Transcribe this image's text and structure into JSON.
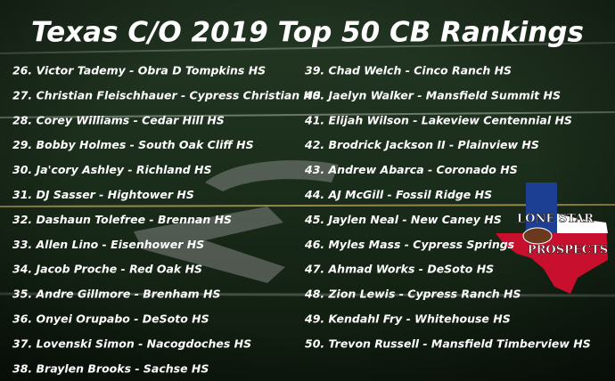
{
  "header": {
    "title": "Texas C/O 2019 Top 50 CB Rankings"
  },
  "rankings": {
    "left": [
      "26. Victor Tademy - Obra D Tompkins HS",
      "27. Christian Fleischhauer - Cypress Christian HS",
      "28. Corey Williams - Cedar Hill HS",
      "29. Bobby Holmes - South Oak Cliff HS",
      "30. Ja'cory Ashley - Richland HS",
      "31. DJ Sasser - Hightower HS",
      "32. Dashaun Tolefree - Brennan HS",
      "33. Allen Lino - Eisenhower HS",
      "34. Jacob Proche - Red Oak HS",
      "35. Andre Gillmore - Brenham HS",
      "36. Onyei Orupabo - DeSoto HS",
      "37. Lovenski Simon - Nacogdoches HS",
      "38. Braylen Brooks - Sachse HS"
    ],
    "right": [
      "39. Chad Welch - Cinco Ranch HS",
      "40. Jaelyn Walker - Mansfield Summit HS",
      "41. Elijah Wilson - Lakeview Centennial HS",
      "42. Brodrick Jackson II - Plainview HS",
      "43. Andrew Abarca - Coronado HS",
      "44. AJ McGill - Fossil Ridge HS",
      "45. Jaylen Neal - New Caney HS",
      "46. Myles Mass - Cypress Springs",
      "47. Ahmad Works - DeSoto HS",
      "48. Zion Lewis - Cypress Ranch HS",
      "49. Kendahl Fry - Whitehouse HS",
      "50. Trevon Russell - Mansfield Timberview HS"
    ]
  },
  "logo": {
    "line1": "LONE STAR",
    "line2": "PROSPECTS"
  }
}
